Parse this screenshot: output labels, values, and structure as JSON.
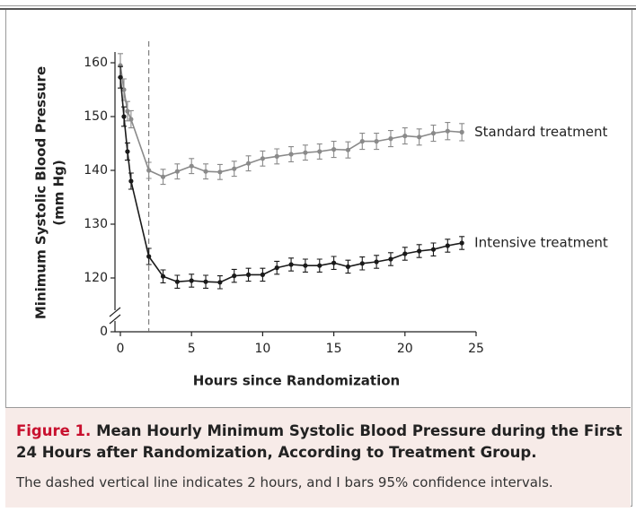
{
  "chart_data": {
    "type": "line",
    "figure_label": "Figure 1.",
    "title": "Mean Hourly Minimum Systolic Blood Pressure during the First 24 Hours after Randomization, According to Treatment Group.",
    "note": "The dashed vertical line indicates 2 hours, and I bars 95% confidence intervals.",
    "xlabel": "Hours since Randomization",
    "ylabel": [
      "Minimum Systolic Blood Pressure",
      "(mm Hg)"
    ],
    "x": [
      0,
      0.25,
      0.5,
      0.75,
      2,
      3,
      4,
      5,
      6,
      7,
      8,
      9,
      10,
      11,
      12,
      13,
      14,
      15,
      16,
      17,
      18,
      19,
      20,
      21,
      22,
      23,
      24
    ],
    "xlim": [
      0,
      25
    ],
    "xticks": [
      0,
      5,
      10,
      15,
      20,
      25
    ],
    "ylim": [
      0,
      162
    ],
    "yticks": [
      0,
      120,
      130,
      140,
      150,
      160
    ],
    "y_break": [
      3,
      113
    ],
    "vline": 2,
    "series": [
      {
        "name": "Standard treatment",
        "color": "#8a8a8a",
        "values": [
          159.5,
          155,
          151,
          149.5,
          140,
          138.8,
          139.8,
          140.8,
          139.8,
          139.7,
          140.3,
          141.3,
          142.2,
          142.6,
          143,
          143.3,
          143.5,
          143.9,
          143.8,
          145.4,
          145.4,
          145.9,
          146.4,
          146.2,
          146.9,
          147.3,
          147.1
        ],
        "errors": [
          2.2,
          2,
          1.8,
          1.6,
          1.5,
          1.4,
          1.4,
          1.4,
          1.4,
          1.4,
          1.4,
          1.4,
          1.4,
          1.4,
          1.4,
          1.4,
          1.4,
          1.5,
          1.5,
          1.5,
          1.5,
          1.5,
          1.5,
          1.5,
          1.5,
          1.6,
          1.6
        ]
      },
      {
        "name": "Intensive treatment",
        "color": "#1a1a1a",
        "values": [
          157.3,
          150,
          143.5,
          138,
          124,
          120.3,
          119.3,
          119.5,
          119.3,
          119.2,
          120.4,
          120.6,
          120.6,
          121.9,
          122.5,
          122.3,
          122.3,
          122.8,
          122.1,
          122.7,
          123,
          123.5,
          124.5,
          125,
          125.3,
          126,
          126.5
        ],
        "errors": [
          2,
          1.8,
          1.6,
          1.5,
          1.5,
          1.2,
          1.2,
          1.2,
          1.2,
          1.2,
          1.2,
          1.2,
          1.2,
          1.2,
          1.2,
          1.2,
          1.2,
          1.2,
          1.2,
          1.2,
          1.2,
          1.2,
          1.2,
          1.2,
          1.2,
          1.2,
          1.2
        ]
      }
    ]
  }
}
